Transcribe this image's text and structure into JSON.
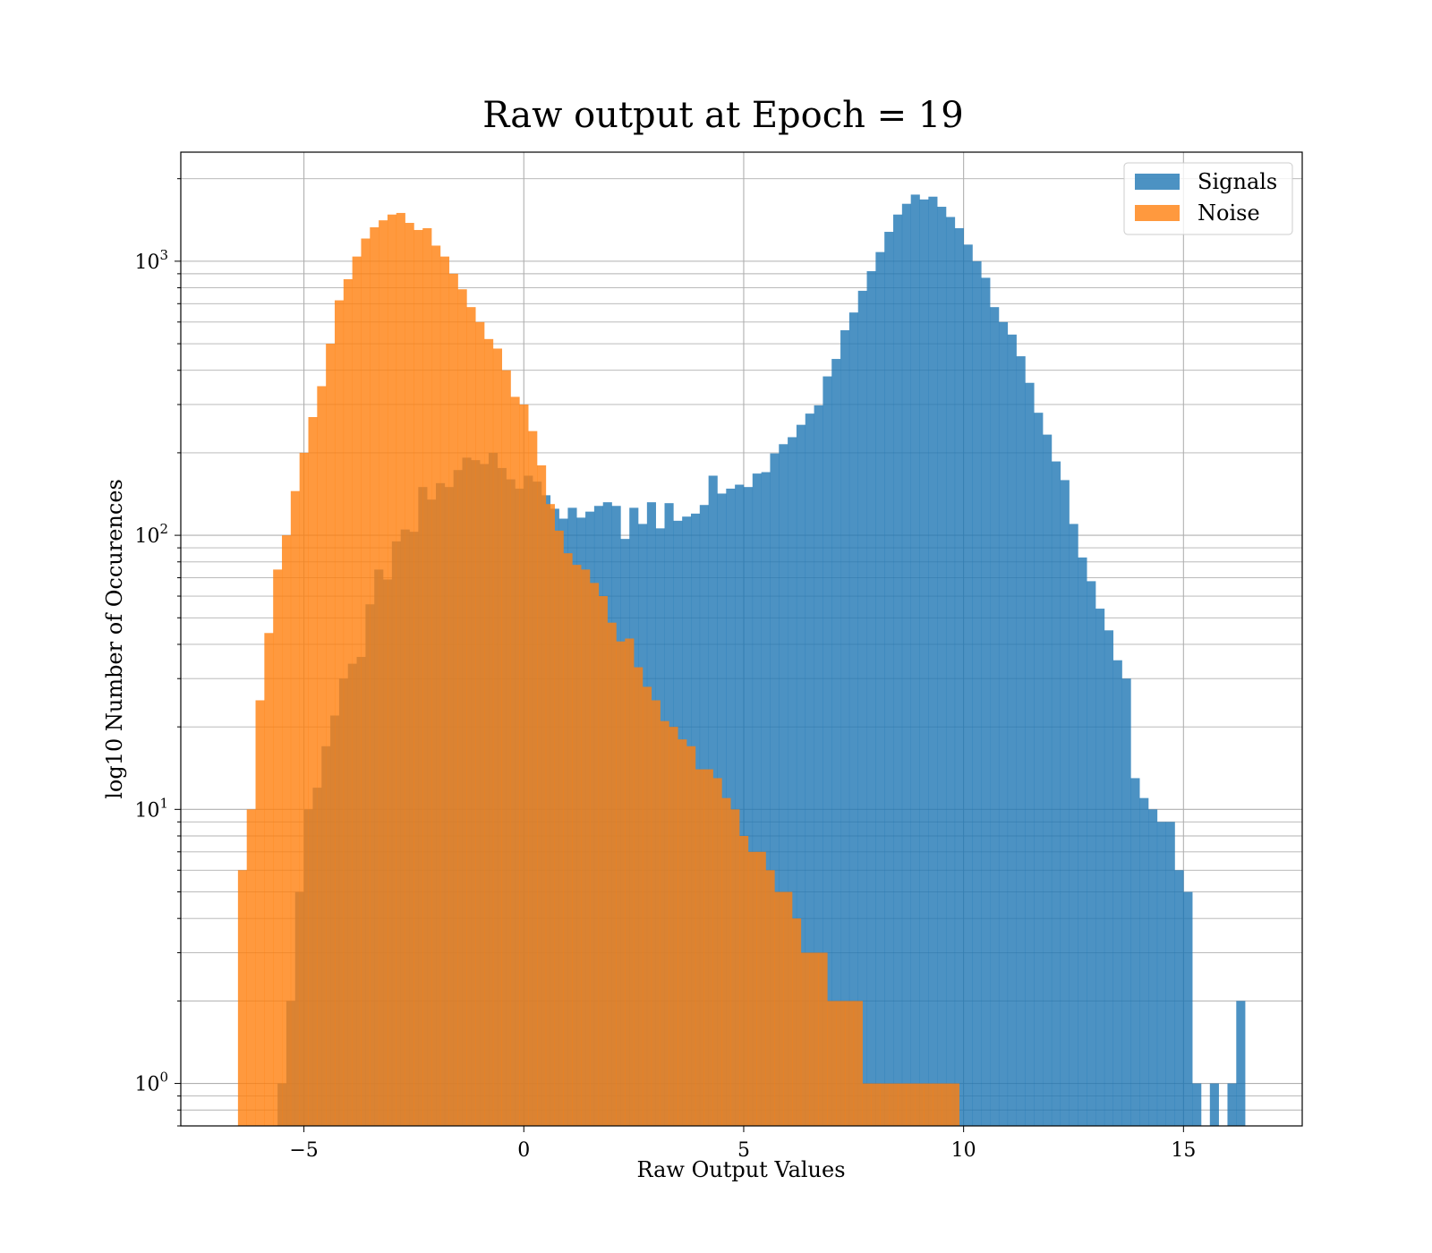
{
  "chart_data": {
    "type": "bar",
    "subtype": "overlaid-histogram",
    "title": "Raw output at Epoch = 19",
    "xlabel": "Raw Output Values",
    "ylabel": "log10 Number of Occurences",
    "yscale": "log",
    "xlim": [
      -7.8,
      17.7
    ],
    "ylim": [
      0.7,
      2500
    ],
    "xticks": [
      -5,
      0,
      5,
      10,
      15
    ],
    "xtick_labels": [
      "−5",
      "0",
      "5",
      "10",
      "15"
    ],
    "yticks": [
      1,
      10,
      100,
      1000
    ],
    "ytick_labels": [
      {
        "base": "10",
        "exp": "0"
      },
      {
        "base": "10",
        "exp": "1"
      },
      {
        "base": "10",
        "exp": "2"
      },
      {
        "base": "10",
        "exp": "3"
      }
    ],
    "grid": true,
    "legend_position": "top-right",
    "series": [
      {
        "name": "Signals",
        "color": "#1f77b4",
        "opacity": 0.8,
        "bins": [
          [
            -5.6,
            -5.4,
            1
          ],
          [
            -5.4,
            -5.2,
            2
          ],
          [
            -5.2,
            -5.0,
            5
          ],
          [
            -5.0,
            -4.8,
            10
          ],
          [
            -4.8,
            -4.6,
            12
          ],
          [
            -4.6,
            -4.4,
            17
          ],
          [
            -4.4,
            -4.2,
            22
          ],
          [
            -4.2,
            -4.0,
            30
          ],
          [
            -4.0,
            -3.8,
            34
          ],
          [
            -3.8,
            -3.6,
            36
          ],
          [
            -3.6,
            -3.4,
            56
          ],
          [
            -3.4,
            -3.2,
            75
          ],
          [
            -3.2,
            -3.0,
            69
          ],
          [
            -3.0,
            -2.8,
            95
          ],
          [
            -2.8,
            -2.6,
            105
          ],
          [
            -2.6,
            -2.4,
            103
          ],
          [
            -2.4,
            -2.2,
            150
          ],
          [
            -2.2,
            -2.0,
            135
          ],
          [
            -2.0,
            -1.8,
            155
          ],
          [
            -1.8,
            -1.6,
            150
          ],
          [
            -1.6,
            -1.4,
            173
          ],
          [
            -1.4,
            -1.2,
            192
          ],
          [
            -1.2,
            -1.0,
            188
          ],
          [
            -1.0,
            -0.8,
            182
          ],
          [
            -0.8,
            -0.6,
            200
          ],
          [
            -0.6,
            -0.4,
            176
          ],
          [
            -0.4,
            -0.2,
            160
          ],
          [
            -0.2,
            0.0,
            148
          ],
          [
            0.0,
            0.2,
            165
          ],
          [
            0.2,
            0.4,
            157
          ],
          [
            0.4,
            0.6,
            140
          ],
          [
            0.6,
            0.8,
            125
          ],
          [
            0.8,
            1.0,
            115
          ],
          [
            1.0,
            1.2,
            126
          ],
          [
            1.2,
            1.4,
            116
          ],
          [
            1.4,
            1.6,
            122
          ],
          [
            1.6,
            1.8,
            128
          ],
          [
            1.8,
            2.0,
            132
          ],
          [
            2.0,
            2.2,
            128
          ],
          [
            2.2,
            2.4,
            97
          ],
          [
            2.4,
            2.6,
            126
          ],
          [
            2.6,
            2.8,
            110
          ],
          [
            2.8,
            3.0,
            132
          ],
          [
            3.0,
            3.2,
            106
          ],
          [
            3.2,
            3.4,
            131
          ],
          [
            3.4,
            3.6,
            113
          ],
          [
            3.6,
            3.8,
            117
          ],
          [
            3.8,
            4.0,
            120
          ],
          [
            4.0,
            4.2,
            129
          ],
          [
            4.2,
            4.4,
            165
          ],
          [
            4.4,
            4.6,
            142
          ],
          [
            4.6,
            4.8,
            148
          ],
          [
            4.8,
            5.0,
            153
          ],
          [
            5.0,
            5.2,
            150
          ],
          [
            5.2,
            5.4,
            168
          ],
          [
            5.4,
            5.6,
            170
          ],
          [
            5.6,
            5.8,
            199
          ],
          [
            5.8,
            6.0,
            215
          ],
          [
            6.0,
            6.2,
            228
          ],
          [
            6.2,
            6.4,
            253
          ],
          [
            6.4,
            6.6,
            278
          ],
          [
            6.6,
            6.8,
            298
          ],
          [
            6.8,
            7.0,
            380
          ],
          [
            7.0,
            7.2,
            440
          ],
          [
            7.2,
            7.4,
            560
          ],
          [
            7.4,
            7.6,
            650
          ],
          [
            7.6,
            7.8,
            780
          ],
          [
            7.8,
            8.0,
            920
          ],
          [
            8.0,
            8.2,
            1080
          ],
          [
            8.2,
            8.4,
            1280
          ],
          [
            8.4,
            8.6,
            1480
          ],
          [
            8.6,
            8.8,
            1620
          ],
          [
            8.8,
            9.0,
            1750
          ],
          [
            9.0,
            9.2,
            1680
          ],
          [
            9.2,
            9.4,
            1720
          ],
          [
            9.4,
            9.6,
            1580
          ],
          [
            9.6,
            9.8,
            1450
          ],
          [
            9.8,
            10.0,
            1320
          ],
          [
            10.0,
            10.2,
            1150
          ],
          [
            10.2,
            10.4,
            1000
          ],
          [
            10.4,
            10.6,
            870
          ],
          [
            10.6,
            10.8,
            680
          ],
          [
            10.8,
            11.0,
            600
          ],
          [
            11.0,
            11.2,
            540
          ],
          [
            11.2,
            11.4,
            450
          ],
          [
            11.4,
            11.6,
            360
          ],
          [
            11.6,
            11.8,
            280
          ],
          [
            11.8,
            12.0,
            233
          ],
          [
            12.0,
            12.2,
            186
          ],
          [
            12.2,
            12.4,
            159
          ],
          [
            12.4,
            12.6,
            110
          ],
          [
            12.6,
            12.8,
            83
          ],
          [
            12.8,
            13.0,
            68
          ],
          [
            13.0,
            13.2,
            54
          ],
          [
            13.2,
            13.4,
            45
          ],
          [
            13.4,
            13.6,
            35
          ],
          [
            13.6,
            13.8,
            30
          ],
          [
            13.8,
            14.0,
            13
          ],
          [
            14.0,
            14.2,
            11
          ],
          [
            14.2,
            14.4,
            10
          ],
          [
            14.4,
            14.6,
            9
          ],
          [
            14.6,
            14.8,
            9
          ],
          [
            14.8,
            15.0,
            6
          ],
          [
            15.0,
            15.2,
            5
          ],
          [
            15.2,
            15.4,
            1
          ],
          [
            15.6,
            15.8,
            1
          ],
          [
            16.0,
            16.2,
            1
          ],
          [
            16.2,
            16.4,
            2
          ]
        ]
      },
      {
        "name": "Noise",
        "color": "#ff7f0e",
        "opacity": 0.8,
        "bins": [
          [
            -6.5,
            -6.3,
            6
          ],
          [
            -6.3,
            -6.1,
            10
          ],
          [
            -6.1,
            -5.9,
            25
          ],
          [
            -5.9,
            -5.7,
            44
          ],
          [
            -5.7,
            -5.5,
            75
          ],
          [
            -5.5,
            -5.3,
            100
          ],
          [
            -5.3,
            -5.1,
            145
          ],
          [
            -5.1,
            -4.9,
            200
          ],
          [
            -4.9,
            -4.7,
            270
          ],
          [
            -4.7,
            -4.5,
            350
          ],
          [
            -4.5,
            -4.3,
            500
          ],
          [
            -4.3,
            -4.1,
            720
          ],
          [
            -4.1,
            -3.9,
            860
          ],
          [
            -3.9,
            -3.7,
            1040
          ],
          [
            -3.7,
            -3.5,
            1210
          ],
          [
            -3.5,
            -3.3,
            1330
          ],
          [
            -3.3,
            -3.1,
            1410
          ],
          [
            -3.1,
            -2.9,
            1480
          ],
          [
            -2.9,
            -2.7,
            1500
          ],
          [
            -2.7,
            -2.5,
            1380
          ],
          [
            -2.5,
            -2.3,
            1300
          ],
          [
            -2.3,
            -2.1,
            1320
          ],
          [
            -2.1,
            -1.9,
            1140
          ],
          [
            -1.9,
            -1.7,
            1040
          ],
          [
            -1.7,
            -1.5,
            900
          ],
          [
            -1.5,
            -1.3,
            790
          ],
          [
            -1.3,
            -1.1,
            680
          ],
          [
            -1.1,
            -0.9,
            600
          ],
          [
            -0.9,
            -0.7,
            520
          ],
          [
            -0.7,
            -0.5,
            480
          ],
          [
            -0.5,
            -0.3,
            400
          ],
          [
            -0.3,
            -0.1,
            320
          ],
          [
            -0.1,
            0.1,
            300
          ],
          [
            0.1,
            0.3,
            240
          ],
          [
            0.3,
            0.5,
            180
          ],
          [
            0.5,
            0.7,
            130
          ],
          [
            0.7,
            0.9,
            104
          ],
          [
            0.9,
            1.1,
            86
          ],
          [
            1.1,
            1.3,
            78
          ],
          [
            1.3,
            1.5,
            75
          ],
          [
            1.5,
            1.7,
            67
          ],
          [
            1.7,
            1.9,
            60
          ],
          [
            1.9,
            2.1,
            48
          ],
          [
            2.1,
            2.3,
            41
          ],
          [
            2.3,
            2.5,
            42
          ],
          [
            2.5,
            2.7,
            33
          ],
          [
            2.7,
            2.9,
            28
          ],
          [
            2.9,
            3.1,
            25
          ],
          [
            3.1,
            3.3,
            21
          ],
          [
            3.3,
            3.5,
            20
          ],
          [
            3.5,
            3.7,
            18
          ],
          [
            3.7,
            3.9,
            17
          ],
          [
            3.9,
            4.1,
            14
          ],
          [
            4.1,
            4.3,
            14
          ],
          [
            4.3,
            4.5,
            13
          ],
          [
            4.5,
            4.7,
            11
          ],
          [
            4.7,
            4.9,
            10
          ],
          [
            4.9,
            5.1,
            8
          ],
          [
            5.1,
            5.3,
            7
          ],
          [
            5.3,
            5.5,
            7
          ],
          [
            5.5,
            5.7,
            6
          ],
          [
            5.7,
            5.9,
            5
          ],
          [
            5.9,
            6.1,
            5
          ],
          [
            6.1,
            6.3,
            4
          ],
          [
            6.3,
            6.5,
            3
          ],
          [
            6.5,
            6.7,
            3
          ],
          [
            6.7,
            6.9,
            3
          ],
          [
            6.9,
            7.1,
            2
          ],
          [
            7.1,
            7.3,
            2
          ],
          [
            7.3,
            7.5,
            2
          ],
          [
            7.5,
            7.7,
            2
          ],
          [
            7.7,
            7.9,
            1
          ],
          [
            7.9,
            8.1,
            1
          ],
          [
            8.1,
            8.3,
            1
          ],
          [
            8.3,
            8.5,
            1
          ],
          [
            8.5,
            8.7,
            1
          ],
          [
            8.7,
            8.9,
            1
          ],
          [
            8.9,
            9.1,
            1
          ],
          [
            9.1,
            9.3,
            1
          ],
          [
            9.3,
            9.5,
            1
          ],
          [
            9.5,
            9.7,
            1
          ],
          [
            9.7,
            9.9,
            1
          ]
        ]
      }
    ]
  }
}
